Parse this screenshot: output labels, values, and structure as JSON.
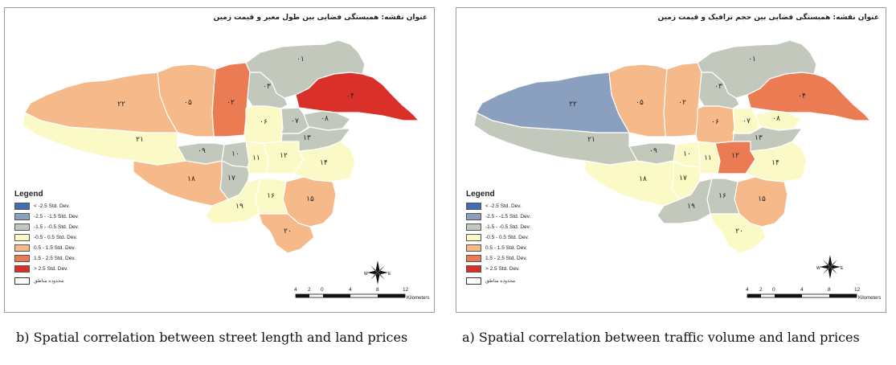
{
  "colors": {
    "lt_neg25": "#3f6fb0",
    "neg25_neg15": "#8b9fbf",
    "neg15_neg05": "#c2c8bc",
    "neg05_05": "#fbfac6",
    "pos05_15": "#f5b98a",
    "pos15_25": "#ea7b53",
    "gt_pos25": "#d9302a"
  },
  "legend": {
    "title": "Legend",
    "items": [
      {
        "label": "< -2.5 Std. Dev.",
        "color": "#3f6fb0"
      },
      {
        "label": "-2.5 - -1.5 Std. Dev.",
        "color": "#8b9fbf"
      },
      {
        "label": "-1.5 - -0.5 Std. Dev.",
        "color": "#c2c8bc"
      },
      {
        "label": "-0.5 - 0.5 Std. Dev.",
        "color": "#fbfac6"
      },
      {
        "label": "0.5 - 1.5 Std. Dev.",
        "color": "#f5b98a"
      },
      {
        "label": "1.5 - 2.5 Std. Dev.",
        "color": "#ea7b53"
      },
      {
        "label": "> 2.5 Std. Dev.",
        "color": "#d9302a"
      }
    ],
    "boundary_label": "محدوده مناطق"
  },
  "scale": {
    "ticks": [
      "4",
      "2",
      "0",
      "4",
      "8",
      "12"
    ],
    "unit": "Kilometers"
  },
  "compass": {
    "n": "N",
    "s": "S",
    "e": "E",
    "w": "W"
  },
  "panels": {
    "b": {
      "title": "عنوان نقشه: همبستگی فضایی بین طول معبر و قیمت زمین",
      "caption": "b) Spatial correlation between street length and land prices",
      "districts": {
        "01": {
          "label": "۰۱",
          "cls": "neg15_neg05"
        },
        "02": {
          "label": "۰۲",
          "cls": "pos15_25"
        },
        "03": {
          "label": "۰۳",
          "cls": "neg15_neg05"
        },
        "04": {
          "label": "۰۴",
          "cls": "gt_pos25"
        },
        "05": {
          "label": "۰۵",
          "cls": "pos05_15"
        },
        "06": {
          "label": "۰۶",
          "cls": "neg05_05"
        },
        "07": {
          "label": "۰۷",
          "cls": "neg15_neg05"
        },
        "08": {
          "label": "۰۸",
          "cls": "neg15_neg05"
        },
        "09": {
          "label": "۰۹",
          "cls": "neg15_neg05"
        },
        "10": {
          "label": "۱۰",
          "cls": "neg15_neg05"
        },
        "11": {
          "label": "۱۱",
          "cls": "neg05_05"
        },
        "12": {
          "label": "۱۲",
          "cls": "neg05_05"
        },
        "13": {
          "label": "۱۳",
          "cls": "neg15_neg05"
        },
        "14": {
          "label": "۱۴",
          "cls": "neg05_05"
        },
        "15": {
          "label": "۱۵",
          "cls": "pos05_15"
        },
        "16": {
          "label": "۱۶",
          "cls": "neg05_05"
        },
        "17": {
          "label": "۱۷",
          "cls": "neg15_neg05"
        },
        "18": {
          "label": "۱۸",
          "cls": "pos05_15"
        },
        "19": {
          "label": "۱۹",
          "cls": "neg05_05"
        },
        "20": {
          "label": "۲۰",
          "cls": "pos05_15"
        },
        "21": {
          "label": "۲۱",
          "cls": "neg05_05"
        },
        "22": {
          "label": "۲۲",
          "cls": "pos05_15"
        }
      }
    },
    "a": {
      "title": "عنوان نقشه: همبستگی فضایی بین حجم ترافیک و قیمت زمین",
      "caption": "a) Spatial correlation between traffic volume and land prices",
      "districts": {
        "01": {
          "label": "۰۱",
          "cls": "neg15_neg05"
        },
        "02": {
          "label": "۰۲",
          "cls": "pos05_15"
        },
        "03": {
          "label": "۰۳",
          "cls": "neg15_neg05"
        },
        "04": {
          "label": "۰۴",
          "cls": "pos15_25"
        },
        "05": {
          "label": "۰۵",
          "cls": "pos05_15"
        },
        "06": {
          "label": "۰۶",
          "cls": "pos05_15"
        },
        "07": {
          "label": "۰۷",
          "cls": "neg05_05"
        },
        "08": {
          "label": "۰۸",
          "cls": "neg05_05"
        },
        "09": {
          "label": "۰۹",
          "cls": "neg15_neg05"
        },
        "10": {
          "label": "۱۰",
          "cls": "neg05_05"
        },
        "11": {
          "label": "۱۱",
          "cls": "neg05_05"
        },
        "12": {
          "label": "۱۲",
          "cls": "pos15_25"
        },
        "13": {
          "label": "۱۳",
          "cls": "neg15_neg05"
        },
        "14": {
          "label": "۱۴",
          "cls": "neg05_05"
        },
        "15": {
          "label": "۱۵",
          "cls": "pos05_15"
        },
        "16": {
          "label": "۱۶",
          "cls": "neg15_neg05"
        },
        "17": {
          "label": "۱۷",
          "cls": "neg05_05"
        },
        "18": {
          "label": "۱۸",
          "cls": "neg05_05"
        },
        "19": {
          "label": "۱۹",
          "cls": "neg15_neg05"
        },
        "20": {
          "label": "۲۰",
          "cls": "neg05_05"
        },
        "21": {
          "label": "۲۱",
          "cls": "neg15_neg05"
        },
        "22": {
          "label": "۲۲",
          "cls": "neg25_neg15"
        }
      }
    }
  }
}
